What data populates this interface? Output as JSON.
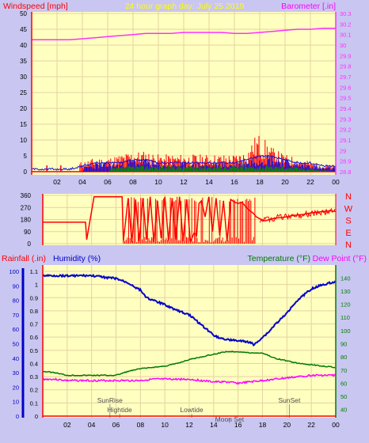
{
  "colors": {
    "background": "#c9c6f2",
    "plot": "#ffffc0",
    "grid": "#e3d3a0",
    "wind_speed": "#ff0000",
    "wind_gust_blue": "#1010e0",
    "wind_green": "#009000",
    "barometer": "#ff30ff",
    "direction": "#ff0000",
    "rainfall": "#ff0000",
    "humidity": "#0000c8",
    "temperature": "#007a00",
    "dew_point": "#ff00ff",
    "title": "#ffff00",
    "label_green": "#008000",
    "axis_text": "#000000"
  },
  "chart_data": [
    {
      "type": "line",
      "panel": "wind-barometer",
      "title": "24 hour graph day:  July 25 2019",
      "ylabel_left": "Windspeed [mph]",
      "ylabel_right": "Barometer [.in]",
      "x_ticks": [
        "02",
        "04",
        "06",
        "08",
        "10",
        "12",
        "14",
        "16",
        "18",
        "20",
        "22",
        "00"
      ],
      "x_range": [
        0,
        24
      ],
      "ylim_left": [
        0,
        50
      ],
      "y_ticks_left": [
        "0",
        "5",
        "10",
        "15",
        "20",
        "25",
        "30",
        "35",
        "40",
        "45",
        "50"
      ],
      "ylim_right": [
        28.8,
        30.3
      ],
      "y_ticks_right": [
        "28.8",
        "28.9",
        "29",
        "29.1",
        "29.2",
        "29.3",
        "29.4",
        "29.5",
        "29.6",
        "29.7",
        "29.8",
        "29.9",
        "30",
        "30.1",
        "30.2",
        "30.3"
      ],
      "grid": true,
      "series": [
        {
          "key": "barometer",
          "axis": "right",
          "x": [
            0,
            1,
            2,
            3,
            4,
            5,
            6,
            7,
            8,
            9,
            10,
            11,
            12,
            13,
            14,
            15,
            16,
            17,
            18,
            19,
            20,
            21,
            22,
            23,
            24
          ],
          "values": [
            30.05,
            30.05,
            30.05,
            30.05,
            30.06,
            30.07,
            30.08,
            30.09,
            30.1,
            30.11,
            30.11,
            30.11,
            30.12,
            30.12,
            30.12,
            30.12,
            30.11,
            30.11,
            30.12,
            30.13,
            30.14,
            30.15,
            30.15,
            30.16,
            30.16
          ]
        },
        {
          "key": "wind_speed_max",
          "axis": "left",
          "x": [
            0,
            1,
            2,
            3,
            4,
            5,
            6,
            7,
            8,
            9,
            10,
            11,
            12,
            13,
            14,
            15,
            16,
            17,
            17.5,
            18,
            18.5,
            19,
            20,
            21,
            22,
            23,
            24
          ],
          "values": [
            2,
            2,
            2,
            2,
            3,
            4,
            4,
            5,
            6,
            6,
            5,
            5,
            5,
            5,
            5,
            5,
            5,
            6,
            10,
            11,
            9,
            7,
            5,
            4,
            3,
            2,
            2
          ]
        },
        {
          "key": "wind_avg",
          "axis": "left",
          "x": [
            0,
            1,
            2,
            3,
            4,
            5,
            6,
            7,
            8,
            9,
            10,
            11,
            12,
            13,
            14,
            15,
            16,
            17,
            18,
            19,
            20,
            21,
            22,
            23,
            24
          ],
          "values": [
            0,
            0,
            0,
            0,
            1,
            2,
            2,
            2,
            3,
            3,
            2,
            2,
            2,
            2,
            2,
            2,
            2,
            3,
            4,
            4,
            3,
            2,
            2,
            1,
            1
          ]
        },
        {
          "key": "wind_low",
          "axis": "left",
          "x": [
            0,
            4,
            8,
            12,
            16,
            20,
            24
          ],
          "values": [
            0,
            0,
            1,
            1,
            1,
            1,
            0
          ]
        }
      ]
    },
    {
      "type": "line",
      "panel": "wind-direction",
      "x_range": [
        0,
        24
      ],
      "ylim": [
        0,
        360
      ],
      "y_ticks": [
        "0",
        "90",
        "180",
        "270",
        "360"
      ],
      "direction_letters": [
        "N",
        "W",
        "S",
        "E",
        "N"
      ],
      "grid": true,
      "series": [
        {
          "key": "direction",
          "x": [
            0,
            3.5,
            3.6,
            4.2,
            6.5,
            6.6,
            7.0,
            7.3,
            7.6,
            7.9,
            8.2,
            8.5,
            8.8,
            9.1,
            9.4,
            9.7,
            10.0,
            10.3,
            10.6,
            10.9,
            11.2,
            11.5,
            11.8,
            12.1,
            12.4,
            12.6,
            12.8,
            13.0,
            13.3,
            13.6,
            13.9,
            14.2,
            14.5,
            14.8,
            15.1,
            15.4,
            15.7,
            16.0,
            16.3,
            16.6,
            16.9,
            17.2,
            17.5,
            17.8,
            18.2,
            18.6,
            19.0,
            19.5,
            20.0,
            20.5,
            21.0,
            21.5,
            22.0,
            22.5,
            23.0,
            23.5,
            24
          ],
          "values": [
            160,
            160,
            30,
            350,
            350,
            20,
            340,
            10,
            330,
            20,
            340,
            30,
            350,
            15,
            320,
            40,
            350,
            20,
            340,
            30,
            350,
            20,
            330,
            15,
            80,
            60,
            300,
            320,
            200,
            350,
            90,
            340,
            60,
            320,
            20,
            330,
            310,
            300,
            310,
            280,
            250,
            230,
            200,
            185,
            170,
            180,
            190,
            195,
            200,
            210,
            215,
            220,
            230,
            235,
            240,
            245,
            240
          ]
        }
      ]
    },
    {
      "type": "line",
      "panel": "rain-humidity-temperature",
      "ylabel_left_1": "Rainfall (.in)",
      "ylabel_left_2": "Humidity (%)",
      "ylabel_right_1": "Temperature (°F)",
      "ylabel_right_2": "Dew Point (°F)",
      "x_ticks": [
        "02",
        "04",
        "06",
        "08",
        "10",
        "12",
        "14",
        "16",
        "18",
        "20",
        "22",
        "00"
      ],
      "x_range": [
        0,
        24
      ],
      "ylim_rain": [
        0,
        1.1
      ],
      "y_ticks_rain": [
        "0",
        "0.1",
        "0.2",
        "0.3",
        "0.4",
        "0.5",
        "0.6",
        "0.7",
        "0.8",
        "0.9",
        "1",
        "1.1"
      ],
      "ylim_humidity": [
        0,
        100
      ],
      "y_ticks_humidity": [
        "0",
        "10",
        "20",
        "30",
        "40",
        "50",
        "60",
        "70",
        "80",
        "90",
        "100"
      ],
      "ylim_temperature": [
        35,
        145
      ],
      "y_ticks_temperature": [
        "40",
        "50",
        "60",
        "70",
        "80",
        "90",
        "100",
        "110",
        "120",
        "130",
        "140"
      ],
      "grid": true,
      "annotations": [
        {
          "key": "sunrise",
          "text": "SunRise",
          "x": 5.5
        },
        {
          "key": "hightide",
          "text": "Hightide",
          "x": 6.3
        },
        {
          "key": "lowtide",
          "text": "Lowtide",
          "x": 12.2
        },
        {
          "key": "moonset",
          "text": "Moon Set",
          "x": 15.3
        },
        {
          "key": "sunset",
          "text": "SunSet",
          "x": 20.2
        }
      ],
      "series": [
        {
          "key": "humidity",
          "x": [
            0,
            1,
            2,
            3,
            4,
            5,
            6,
            7,
            8,
            8.5,
            9,
            10,
            11,
            12,
            13,
            14,
            14.5,
            15,
            16,
            17,
            17.3,
            17.8,
            18.5,
            19,
            19.5,
            20,
            20.5,
            21,
            22,
            23,
            24
          ],
          "values": [
            97,
            97,
            97,
            97,
            97,
            96,
            95,
            92,
            87,
            82,
            80,
            77,
            73,
            70,
            63,
            56,
            54,
            53,
            52,
            51,
            49,
            53,
            58,
            63,
            67,
            71,
            77,
            81,
            88,
            91,
            93
          ]
        },
        {
          "key": "temperature",
          "x": [
            0,
            1,
            2,
            3,
            4,
            5,
            6,
            7,
            8,
            9,
            10,
            11,
            12,
            13,
            14,
            15,
            16,
            17,
            18,
            19,
            20,
            21,
            22,
            23,
            24
          ],
          "values": [
            69,
            68,
            66,
            66,
            66,
            66,
            66,
            69,
            71,
            72,
            73,
            75,
            78,
            80,
            82,
            84,
            84,
            83,
            83,
            79,
            77,
            75,
            74,
            73,
            72
          ]
        },
        {
          "key": "dew_point",
          "x": [
            0,
            1,
            2,
            3,
            4,
            5,
            6,
            7,
            8,
            9,
            10,
            11,
            12,
            13,
            14,
            15,
            16,
            17,
            18,
            19,
            20,
            21,
            22,
            23,
            24
          ],
          "values": [
            63,
            63,
            62,
            62,
            62,
            62,
            62,
            62,
            62,
            63,
            63,
            63,
            63,
            62,
            61,
            61,
            60,
            61,
            62,
            63,
            64,
            65,
            66,
            66,
            66
          ]
        },
        {
          "key": "rainfall",
          "x": [
            0,
            24
          ],
          "values": [
            0,
            0
          ]
        }
      ]
    }
  ]
}
